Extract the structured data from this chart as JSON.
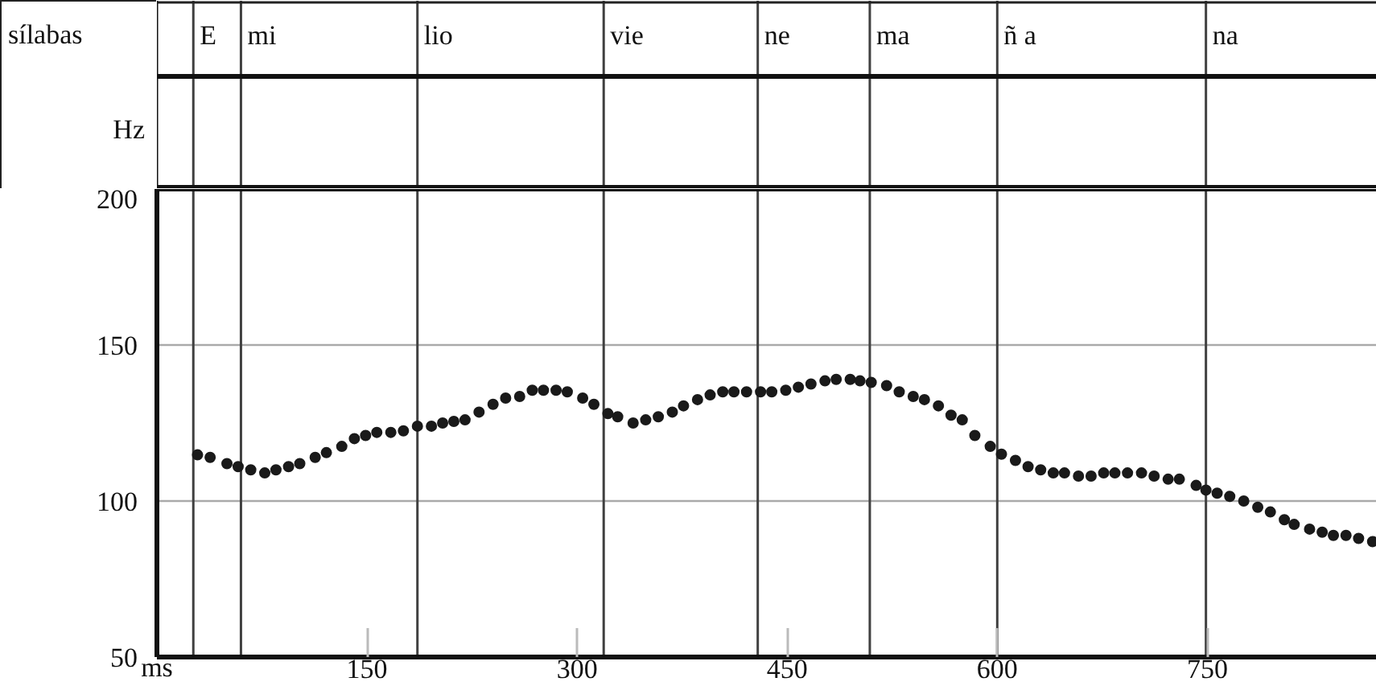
{
  "chart_data": {
    "type": "scatter",
    "xlabel": "ms",
    "ylabel": "Hz",
    "annotations": [
      "sílabas"
    ],
    "x": [
      29,
      38,
      50,
      58,
      67,
      77,
      85,
      94,
      102,
      113,
      121,
      132,
      141,
      149,
      157,
      167,
      176,
      186,
      196,
      204,
      212,
      220,
      230,
      240,
      249,
      259,
      268,
      276,
      285,
      293,
      304,
      312,
      322,
      329,
      340,
      349,
      358,
      368,
      376,
      386,
      395,
      404,
      412,
      421,
      431,
      439,
      449,
      458,
      467,
      477,
      485,
      495,
      502,
      510,
      521,
      530,
      540,
      548,
      558,
      567,
      575,
      584,
      595,
      603,
      613,
      622,
      631,
      640,
      648,
      658,
      667,
      676,
      684,
      693,
      703,
      712,
      722,
      730,
      742,
      749,
      757,
      766,
      776,
      786,
      795,
      805,
      812,
      823,
      832,
      840,
      849,
      858,
      868
    ],
    "series": [
      {
        "color": "#1a1a1a",
        "values": [
          114.8,
          114,
          112,
          111,
          110,
          109,
          110,
          111,
          112,
          114,
          115.5,
          117.5,
          120,
          121,
          122,
          122,
          122.5,
          124,
          124,
          125,
          125.5,
          126,
          128.5,
          131,
          133,
          133.5,
          135.5,
          135.5,
          135.5,
          135,
          133,
          131,
          128,
          127,
          125,
          126,
          127,
          128.5,
          130.5,
          132.5,
          134,
          135,
          135,
          135,
          135,
          135,
          135.5,
          136.5,
          137.5,
          138.5,
          139,
          139,
          138.5,
          138,
          137,
          135,
          133.5,
          132.5,
          130.5,
          127.5,
          126,
          121,
          117.5,
          115,
          113,
          111,
          110,
          109,
          109,
          108,
          108,
          109,
          109,
          109,
          109,
          108,
          107,
          107,
          105,
          103.5,
          102.5,
          101.5,
          100,
          98,
          96.5,
          94,
          92.5,
          91,
          90,
          89,
          89,
          88,
          87
        ]
      }
    ],
    "xlim": [
      0,
      871
    ],
    "ylim": [
      50,
      200
    ],
    "xticks": [
      150,
      300,
      450,
      600,
      750
    ],
    "yticks": [
      50,
      100,
      150,
      200
    ],
    "grid": "y",
    "marker": "circle",
    "ref_lines": [
      {
        "axis": "x",
        "value": 26,
        "label": "E"
      },
      {
        "axis": "x",
        "value": 60,
        "label": "mi"
      },
      {
        "axis": "x",
        "value": 186,
        "label": "lio"
      },
      {
        "axis": "x",
        "value": 319,
        "label": "vie"
      },
      {
        "axis": "x",
        "value": 429,
        "label": "ne"
      },
      {
        "axis": "x",
        "value": 509,
        "label": "ma"
      },
      {
        "axis": "x",
        "value": 600,
        "label": "ñ a"
      },
      {
        "axis": "x",
        "value": 749,
        "label": "na"
      }
    ]
  }
}
